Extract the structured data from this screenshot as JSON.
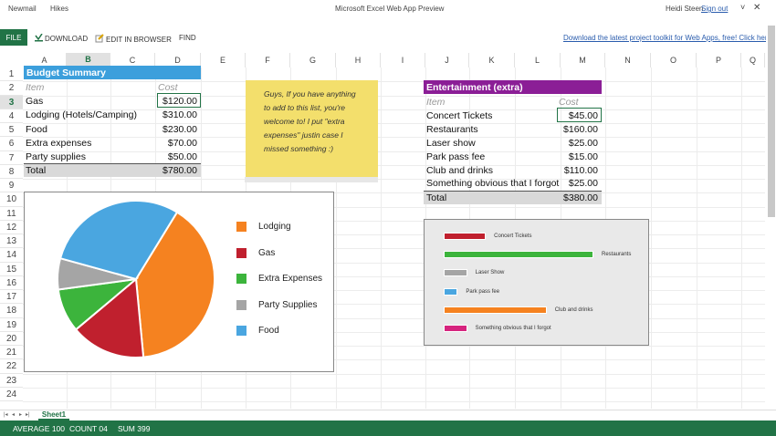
{
  "titlebar": {
    "app1": "Newmail",
    "app2": "Hikes",
    "title": "Microsoft Excel Web App Preview",
    "user": "Heidi Steen",
    "signout": "Sign out",
    "chevron": "˅",
    "close": "✕"
  },
  "ribbon": {
    "file": "FILE",
    "download": "DOWNLOAD",
    "edit": "EDIT IN BROWSER",
    "find": "FIND",
    "link": "Download the latest project toolkit for Web Apps, free! Click here"
  },
  "columns": [
    "A",
    "B",
    "C",
    "D",
    "E",
    "F",
    "G",
    "H",
    "I",
    "J",
    "K",
    "L",
    "M",
    "N",
    "O",
    "P",
    "Q"
  ],
  "rows": [
    "1",
    "2",
    "3",
    "4",
    "5",
    "6",
    "7",
    "8",
    "9",
    "10",
    "11",
    "12",
    "13",
    "14",
    "15",
    "16",
    "17",
    "18",
    "19",
    "20",
    "21",
    "22",
    "23",
    "24"
  ],
  "budget": {
    "header": "Budget Summary",
    "item_label": "Item",
    "cost_label": "Cost",
    "items": [
      {
        "name": "Gas",
        "cost": "$120.00"
      },
      {
        "name": "Lodging (Hotels/Camping)",
        "cost": "$310.00"
      },
      {
        "name": "Food",
        "cost": "$230.00"
      },
      {
        "name": "Extra expenses",
        "cost": "$70.00"
      },
      {
        "name": "Party supplies",
        "cost": "$50.00"
      }
    ],
    "total_label": "Total",
    "total": "$780.00"
  },
  "note": {
    "line1": "Guys, If you have anything",
    "line2": "to add to this list, you're",
    "line3": "welcome to! I put \"extra",
    "line4": "expenses\" justin case I",
    "line5": "missed something :)"
  },
  "entertainment": {
    "header": "Entertainment (extra)",
    "item_label": "Item",
    "cost_label": "Cost",
    "items": [
      {
        "name": "Concert Tickets",
        "cost": "$45.00"
      },
      {
        "name": "Restaurants",
        "cost": "$160.00"
      },
      {
        "name": "Laser show",
        "cost": "$25.00"
      },
      {
        "name": "Park pass fee",
        "cost": "$15.00"
      },
      {
        "name": "Club and drinks",
        "cost": "$110.00"
      },
      {
        "name": "Something obvious that I forgot",
        "cost": "$25.00"
      }
    ],
    "total_label": "Total",
    "total": "$380.00"
  },
  "pie_legend": [
    {
      "label": "Lodging",
      "color": "#f58220"
    },
    {
      "label": "Gas",
      "color": "#c0202e"
    },
    {
      "label": "Extra Expenses",
      "color": "#3cb43c"
    },
    {
      "label": "Party Supplies",
      "color": "#a5a5a5"
    },
    {
      "label": "Food",
      "color": "#4aa6e0"
    }
  ],
  "chart_data": [
    {
      "type": "pie",
      "categories": [
        "Lodging",
        "Gas",
        "Extra Expenses",
        "Party Supplies",
        "Food"
      ],
      "values": [
        310,
        120,
        70,
        50,
        230
      ],
      "colors": [
        "#f58220",
        "#c0202e",
        "#3cb43c",
        "#a5a5a5",
        "#4aa6e0"
      ],
      "legend": "right"
    },
    {
      "type": "bar",
      "orientation": "horizontal",
      "categories": [
        "Concert Tickets",
        "Restaurants",
        "Laser Show",
        "Park pass fee",
        "Club and drinks",
        "Something obvious that I forgot"
      ],
      "values": [
        45,
        160,
        25,
        15,
        110,
        25
      ],
      "colors": [
        "#c0202e",
        "#3cb43c",
        "#a5a5a5",
        "#4aa6e0",
        "#f58220",
        "#d6247e"
      ]
    }
  ],
  "tabs": {
    "sheet": "Sheet1",
    "nav": [
      "|◂",
      "◂",
      "▸",
      "▸|"
    ]
  },
  "status": {
    "average": "AVERAGE 100",
    "count": "COUNT 04",
    "sum": "SUM 399"
  }
}
